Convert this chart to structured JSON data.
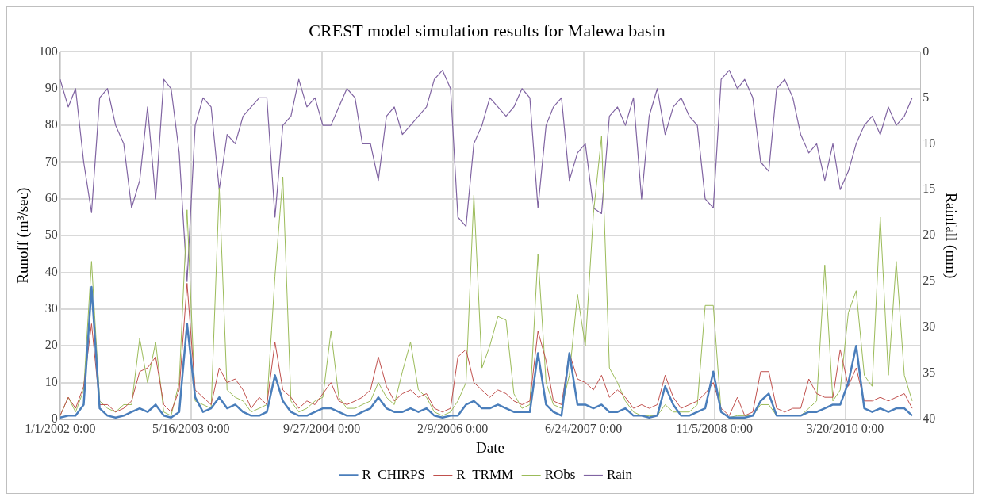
{
  "chart_data": {
    "type": "line",
    "title": "CREST model simulation results for Malewa basin",
    "xlabel": "Date",
    "ylabel": "Runoff (m³/sec)",
    "y2label": "Rainfall (mm)",
    "x": [
      "2002-01",
      "2002-02",
      "2002-03",
      "2002-04",
      "2002-05",
      "2002-06",
      "2002-07",
      "2002-08",
      "2002-09",
      "2002-10",
      "2002-11",
      "2002-12",
      "2003-01",
      "2003-02",
      "2003-03",
      "2003-04",
      "2003-05",
      "2003-06",
      "2003-07",
      "2003-08",
      "2003-09",
      "2003-10",
      "2003-11",
      "2003-12",
      "2004-01",
      "2004-02",
      "2004-03",
      "2004-04",
      "2004-05",
      "2004-06",
      "2004-07",
      "2004-08",
      "2004-09",
      "2004-10",
      "2004-11",
      "2004-12",
      "2005-01",
      "2005-02",
      "2005-03",
      "2005-04",
      "2005-05",
      "2005-06",
      "2005-07",
      "2005-08",
      "2005-09",
      "2005-10",
      "2005-11",
      "2005-12",
      "2006-01",
      "2006-02",
      "2006-03",
      "2006-04",
      "2006-05",
      "2006-06",
      "2006-07",
      "2006-08",
      "2006-09",
      "2006-10",
      "2006-11",
      "2006-12",
      "2007-01",
      "2007-02",
      "2007-03",
      "2007-04",
      "2007-05",
      "2007-06",
      "2007-07",
      "2007-08",
      "2007-09",
      "2007-10",
      "2007-11",
      "2007-12",
      "2008-01",
      "2008-02",
      "2008-03",
      "2008-04",
      "2008-05",
      "2008-06",
      "2008-07",
      "2008-08",
      "2008-09",
      "2008-10",
      "2008-11",
      "2008-12",
      "2009-01",
      "2009-02",
      "2009-03",
      "2009-04",
      "2009-05",
      "2009-06",
      "2009-07",
      "2009-08",
      "2009-09",
      "2009-10",
      "2009-11",
      "2009-12",
      "2010-01",
      "2010-02",
      "2010-03",
      "2010-04",
      "2010-05",
      "2010-06",
      "2010-07",
      "2010-08",
      "2010-09",
      "2010-10",
      "2010-11",
      "2010-12"
    ],
    "series": [
      {
        "name": "R_CHIRPS",
        "color": "#4a7ebb",
        "values": [
          0.5,
          1,
          1,
          4,
          36,
          3,
          1,
          0.5,
          1,
          2,
          3,
          2,
          4,
          1,
          0.5,
          2,
          26,
          6,
          2,
          3,
          6,
          3,
          4,
          2,
          1,
          1,
          2,
          12,
          5,
          2,
          1,
          1,
          2,
          3,
          3,
          2,
          1,
          1,
          2,
          3,
          6,
          3,
          2,
          2,
          3,
          2,
          3,
          1,
          0.5,
          1,
          1,
          4,
          5,
          3,
          3,
          4,
          3,
          2,
          2,
          2,
          18,
          4,
          2,
          1,
          18,
          4,
          4,
          3,
          4,
          2,
          2,
          3,
          1,
          1,
          0.5,
          1,
          9,
          4,
          1,
          1,
          2,
          3,
          13,
          2,
          0.5,
          0.5,
          0.5,
          1,
          5,
          7,
          1,
          1,
          1,
          1,
          2,
          2,
          3,
          4,
          4,
          10,
          20,
          3,
          2,
          3,
          2,
          3,
          3,
          1
        ]
      },
      {
        "name": "R_TRMM",
        "color": "#c0504d",
        "values": [
          1,
          6,
          3,
          9,
          26,
          4,
          4,
          2,
          3,
          5,
          13,
          14,
          17,
          4,
          2,
          8,
          37,
          8,
          6,
          4,
          14,
          10,
          11,
          8,
          3,
          6,
          4,
          21,
          8,
          6,
          3,
          5,
          4,
          7,
          10,
          5,
          4,
          5,
          6,
          8,
          17,
          9,
          5,
          7,
          8,
          6,
          7,
          3,
          2,
          3,
          17,
          19,
          10,
          8,
          6,
          8,
          7,
          5,
          4,
          5,
          24,
          16,
          5,
          4,
          18,
          11,
          10,
          8,
          12,
          6,
          8,
          6,
          3,
          4,
          3,
          4,
          12,
          6,
          3,
          4,
          5,
          7,
          10,
          3,
          1,
          6,
          1,
          2,
          13,
          13,
          3,
          2,
          3,
          3,
          11,
          7,
          6,
          6,
          19,
          9,
          14,
          5,
          5,
          6,
          5,
          6,
          7,
          3
        ]
      },
      {
        "name": "RObs",
        "color": "#9bbb59",
        "values": [
          1,
          6,
          2,
          8,
          43,
          5,
          3,
          2,
          4,
          4,
          22,
          10,
          21,
          2,
          1,
          10,
          57,
          5,
          4,
          3,
          63,
          8,
          6,
          5,
          2,
          3,
          4,
          39,
          66,
          5,
          2,
          3,
          5,
          6,
          24,
          6,
          3,
          3,
          4,
          5,
          10,
          6,
          4,
          13,
          21,
          8,
          6,
          2,
          1,
          2,
          5,
          10,
          61,
          14,
          20,
          28,
          27,
          7,
          3,
          4,
          45,
          10,
          4,
          3,
          12,
          34,
          20,
          56,
          77,
          14,
          10,
          5,
          2,
          1,
          1,
          1,
          4,
          2,
          2,
          2,
          4,
          31,
          31,
          2,
          0.5,
          1,
          1,
          1,
          4,
          4,
          1,
          1,
          1,
          1,
          3,
          5,
          42,
          5,
          8,
          29,
          35,
          12,
          9,
          55,
          12,
          43,
          12,
          5
        ]
      },
      {
        "name": "Rain",
        "color": "#8064a2",
        "axis": "y2",
        "values": [
          3,
          6,
          4,
          12,
          17.5,
          5,
          4,
          8,
          10,
          17,
          14,
          6,
          16,
          3,
          4,
          11,
          25,
          8,
          5,
          6,
          15,
          9,
          10,
          7,
          6,
          5,
          5,
          18,
          8,
          7,
          3,
          6,
          5,
          8,
          8,
          6,
          4,
          5,
          10,
          10,
          14,
          7,
          6,
          9,
          8,
          7,
          6,
          3,
          2,
          4,
          18,
          19,
          10,
          8,
          5,
          6,
          7,
          6,
          4,
          5,
          17,
          8,
          6,
          5,
          14,
          11,
          10,
          17,
          17.6,
          7,
          6,
          8,
          5,
          16,
          7,
          4,
          9,
          6,
          5,
          7,
          8,
          16,
          17,
          3,
          2,
          4,
          3,
          5,
          12,
          13,
          4,
          3,
          5,
          9,
          11,
          10,
          14,
          10,
          15,
          13,
          10,
          8,
          7,
          9,
          6,
          8,
          7,
          5
        ]
      }
    ],
    "xlim": [
      "2002-01-01",
      "2011-01-01"
    ],
    "xticks": [
      {
        "value": "2002-01-01",
        "label": "1/1/2002 0:00"
      },
      {
        "value": "2003-05-16",
        "label": "5/16/2003 0:00"
      },
      {
        "value": "2004-09-27",
        "label": "9/27/2004 0:00"
      },
      {
        "value": "2006-02-09",
        "label": "2/9/2006 0:00"
      },
      {
        "value": "2007-06-24",
        "label": "6/24/2007 0:00"
      },
      {
        "value": "2008-11-05",
        "label": "11/5/2008 0:00"
      },
      {
        "value": "2010-03-20",
        "label": "3/20/2010 0:00"
      }
    ],
    "ylim": [
      0,
      100
    ],
    "yticks": [
      0,
      10,
      20,
      30,
      40,
      50,
      60,
      70,
      80,
      90,
      100
    ],
    "y2lim": [
      40,
      0
    ],
    "y2ticks": [
      0,
      5,
      10,
      15,
      20,
      25,
      30,
      35,
      40
    ],
    "grid": true,
    "legend": "bottom",
    "marker": "none",
    "line_style": "solid"
  }
}
